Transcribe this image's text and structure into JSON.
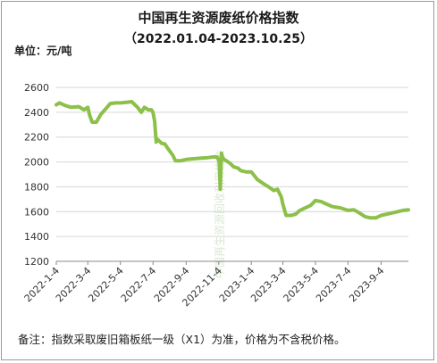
{
  "chart_data": {
    "type": "line",
    "title": "中国再生资源废纸价格指数",
    "subtitle": "（2022.01.04-2023.10.25）",
    "unit_label": "单位：元/吨",
    "watermark": "中国再生资源回收利用协会",
    "note": "备注：指数采取废旧箱板纸一级（X1）为准，价格为不含税价格。",
    "x_ticks": [
      "2022-1-4",
      "2022-3-4",
      "2022-5-4",
      "2022-7-4",
      "2022-9-4",
      "2022-11-4",
      "2023-1-4",
      "2023-3-4",
      "2023-5-4",
      "2023-7-4",
      "2023-9-4"
    ],
    "y_ticks": [
      1200,
      1400,
      1600,
      1800,
      2000,
      2200,
      2400,
      2600
    ],
    "ylim": [
      1200,
      2600
    ],
    "xlim": [
      "2022-01-04",
      "2023-10-25"
    ],
    "grid": true,
    "line_color": "#8cc04a",
    "series": [
      {
        "x": [
          "2022-01-04",
          "2022-01-10",
          "2022-01-20",
          "2022-02-01",
          "2022-02-15",
          "2022-02-25",
          "2022-03-04",
          "2022-03-07",
          "2022-03-12",
          "2022-03-20",
          "2022-03-28",
          "2022-04-05",
          "2022-04-15",
          "2022-04-25",
          "2022-05-04",
          "2022-05-15",
          "2022-05-25",
          "2022-06-05",
          "2022-06-12",
          "2022-06-18",
          "2022-06-25",
          "2022-07-01",
          "2022-07-04",
          "2022-07-07",
          "2022-07-10",
          "2022-07-13",
          "2022-07-20",
          "2022-07-26",
          "2022-08-02",
          "2022-08-10",
          "2022-08-15",
          "2022-08-25",
          "2022-09-04",
          "2022-09-15",
          "2022-10-01",
          "2022-10-15",
          "2022-10-25",
          "2022-11-01",
          "2022-11-05",
          "2022-11-07",
          "2022-11-09",
          "2022-11-11",
          "2022-11-14",
          "2022-11-18",
          "2022-11-25",
          "2022-12-02",
          "2022-12-10",
          "2022-12-15",
          "2022-12-25",
          "2023-01-04",
          "2023-01-15",
          "2023-01-25",
          "2023-02-05",
          "2023-02-15",
          "2023-02-22",
          "2023-03-01",
          "2023-03-04",
          "2023-03-10",
          "2023-03-20",
          "2023-03-28",
          "2023-04-05",
          "2023-04-15",
          "2023-04-25",
          "2023-05-04",
          "2023-05-15",
          "2023-05-25",
          "2023-06-05",
          "2023-06-20",
          "2023-07-04",
          "2023-07-15",
          "2023-07-25",
          "2023-08-05",
          "2023-08-15",
          "2023-08-25",
          "2023-09-04",
          "2023-09-15",
          "2023-09-25",
          "2023-10-05",
          "2023-10-15",
          "2023-10-25"
        ],
        "values": [
          2460,
          2475,
          2455,
          2440,
          2445,
          2420,
          2440,
          2380,
          2320,
          2320,
          2380,
          2420,
          2470,
          2475,
          2475,
          2480,
          2485,
          2440,
          2400,
          2440,
          2420,
          2420,
          2400,
          2330,
          2160,
          2180,
          2150,
          2145,
          2100,
          2055,
          2010,
          2010,
          2020,
          2025,
          2030,
          2035,
          2040,
          2040,
          2000,
          1780,
          2070,
          2040,
          2020,
          2010,
          1990,
          1960,
          1950,
          1930,
          1920,
          1920,
          1860,
          1830,
          1800,
          1770,
          1780,
          1720,
          1660,
          1570,
          1570,
          1580,
          1610,
          1630,
          1650,
          1690,
          1680,
          1660,
          1640,
          1630,
          1610,
          1615,
          1590,
          1560,
          1550,
          1550,
          1570,
          1580,
          1590,
          1600,
          1610,
          1615
        ]
      }
    ]
  }
}
